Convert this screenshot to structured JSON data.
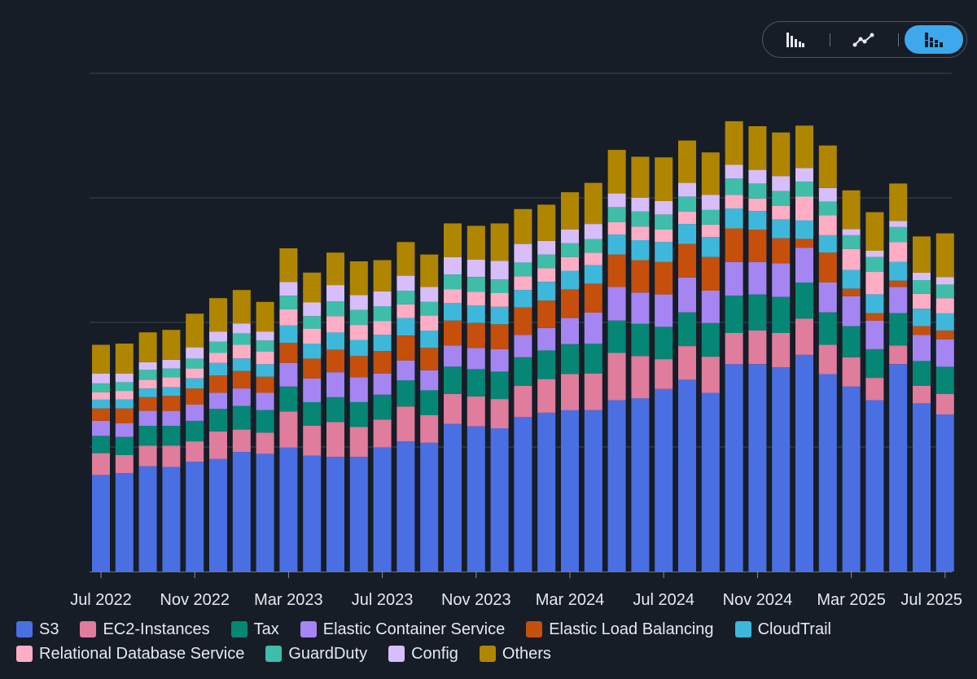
{
  "toolbar": {
    "buttons": [
      {
        "name": "bar-chart-view",
        "icon": "bar-chart-icon",
        "active": false
      },
      {
        "name": "line-chart-view",
        "icon": "line-chart-icon",
        "active": false
      },
      {
        "name": "stacked-bar-chart-view",
        "icon": "stacked-bar-chart-icon",
        "active": true
      }
    ]
  },
  "chart_data": {
    "type": "bar",
    "stacked": true,
    "title": "",
    "xlabel": "",
    "ylabel": "",
    "grid": true,
    "ylim": [
      0,
      400
    ],
    "y_gridlines": [
      100,
      200,
      300,
      400
    ],
    "legend_position": "bottom",
    "tick_labels": [
      "Jul 2022",
      "Nov 2022",
      "Mar 2023",
      "Jul 2023",
      "Nov 2023",
      "Mar 2024",
      "Jul 2024",
      "Nov 2024",
      "Mar 2025",
      "Jul 2025"
    ],
    "tick_category_index": [
      0,
      4,
      8,
      12,
      16,
      20,
      24,
      28,
      32,
      36
    ],
    "categories": [
      "Jul 2022",
      "Aug 2022",
      "Sep 2022",
      "Oct 2022",
      "Nov 2022",
      "Dec 2022",
      "Jan 2023",
      "Feb 2023",
      "Mar 2023",
      "Apr 2023",
      "May 2023",
      "Jun 2023",
      "Jul 2023",
      "Aug 2023",
      "Sep 2023",
      "Oct 2023",
      "Nov 2023",
      "Dec 2023",
      "Jan 2024",
      "Feb 2024",
      "Mar 2024",
      "Apr 2024",
      "May 2024",
      "Jun 2024",
      "Jul 2024",
      "Aug 2024",
      "Sep 2024",
      "Oct 2024",
      "Nov 2024",
      "Dec 2024",
      "Jan 2025",
      "Feb 2025",
      "Mar 2025",
      "Apr 2025",
      "May 2025",
      "Jun 2025",
      "Jul 2025"
    ],
    "series": [
      {
        "name": "S3",
        "color": "#4a6fe3",
        "values": [
          77.5,
          79,
          84.5,
          84,
          88,
          90.5,
          96,
          94.5,
          99.5,
          93,
          92,
          92,
          99.5,
          104.5,
          103.5,
          118.5,
          116.5,
          115,
          124,
          127.5,
          129.5,
          129.5,
          137.5,
          139,
          146.5,
          154,
          143.5,
          166.5,
          166.5,
          164,
          174,
          158.5,
          148.5,
          137.5,
          166.5,
          135,
          126
        ]
      },
      {
        "name": "EC2-Instances",
        "color": "#e07c9c",
        "values": [
          17.5,
          14.5,
          16.5,
          17,
          16.5,
          22,
          18,
          17,
          29,
          24,
          28,
          24,
          22.5,
          28,
          22,
          24,
          24,
          23.5,
          25,
          27,
          29,
          29.5,
          38,
          34,
          24,
          27,
          29,
          25,
          27,
          27.5,
          29,
          23.5,
          23.5,
          18,
          15,
          14,
          16.5
        ]
      },
      {
        "name": "Tax",
        "color": "#068675",
        "values": [
          14,
          14.5,
          16,
          16,
          16.5,
          18,
          19,
          18,
          20,
          19,
          20,
          20,
          20,
          21,
          20,
          22,
          22,
          22,
          23,
          23,
          24,
          24,
          26,
          26,
          26,
          27,
          27,
          30,
          29,
          29,
          29,
          26,
          25,
          23,
          26,
          20,
          22
        ]
      },
      {
        "name": "Elastic Container Service",
        "color": "#a585f2",
        "values": [
          12,
          11,
          12,
          12,
          13,
          13,
          14,
          14,
          19,
          19,
          20,
          20,
          17,
          16,
          16,
          17,
          17,
          18,
          18,
          18,
          21,
          25,
          27,
          25,
          26,
          28,
          26,
          27,
          26,
          27,
          28,
          24,
          24,
          23,
          21,
          21,
          22
        ]
      },
      {
        "name": "Elastic Load Balancing",
        "color": "#c64f0c",
        "values": [
          10,
          12,
          11,
          12,
          13,
          14,
          14,
          13,
          16,
          16,
          18,
          17,
          18,
          20,
          18,
          20,
          20,
          20,
          22,
          22,
          23,
          23,
          26,
          26,
          26,
          27,
          27,
          27,
          26,
          20,
          7,
          24,
          6,
          6,
          5,
          7,
          7
        ]
      },
      {
        "name": "CloudTrail",
        "color": "#3db8db",
        "values": [
          7,
          7,
          7,
          7,
          8,
          10,
          10,
          10,
          14,
          12,
          14,
          13,
          13,
          14,
          14,
          14,
          14,
          14,
          14,
          15,
          15,
          15,
          16,
          16,
          16,
          16,
          16,
          16,
          15,
          15,
          15,
          14,
          15,
          15,
          15,
          14,
          14
        ]
      },
      {
        "name": "Relational Database Service",
        "color": "#ffadc5",
        "values": [
          6,
          7,
          7,
          8,
          8,
          8,
          11,
          10,
          13,
          12,
          13,
          12,
          11,
          11,
          12,
          11,
          11,
          11,
          11,
          11,
          11,
          10,
          10,
          11,
          10,
          10,
          10,
          11,
          10,
          11,
          19,
          16,
          17,
          18,
          16,
          12,
          12
        ]
      },
      {
        "name": "GuardDuty",
        "color": "#3ebea8",
        "values": [
          7,
          7,
          8,
          7,
          8,
          9,
          9,
          9,
          11,
          10,
          12,
          12,
          12,
          11,
          11,
          12,
          12,
          11,
          11,
          11,
          11,
          11,
          12,
          12,
          12,
          12,
          12,
          13,
          12,
          12,
          12,
          11,
          11,
          12,
          12,
          11,
          11
        ]
      },
      {
        "name": "Config",
        "color": "#d7bdfa",
        "values": [
          8,
          7,
          6,
          7,
          9,
          8,
          8,
          7,
          11,
          11,
          13,
          12,
          12,
          12,
          12,
          14,
          14,
          15,
          15,
          11,
          11,
          12,
          11,
          11,
          11,
          11,
          12,
          11,
          11,
          12,
          11,
          11,
          5,
          5,
          5,
          6,
          6
        ]
      },
      {
        "name": "Others",
        "color": "#b08600",
        "values": [
          23,
          24,
          24,
          24,
          27,
          27,
          27,
          24,
          27,
          24,
          26,
          27,
          25,
          27,
          26,
          27,
          27,
          30,
          28,
          29,
          30,
          33,
          35,
          33,
          35,
          34,
          34,
          35,
          35,
          35,
          34,
          34,
          31,
          31,
          30,
          29,
          35
        ]
      }
    ]
  }
}
